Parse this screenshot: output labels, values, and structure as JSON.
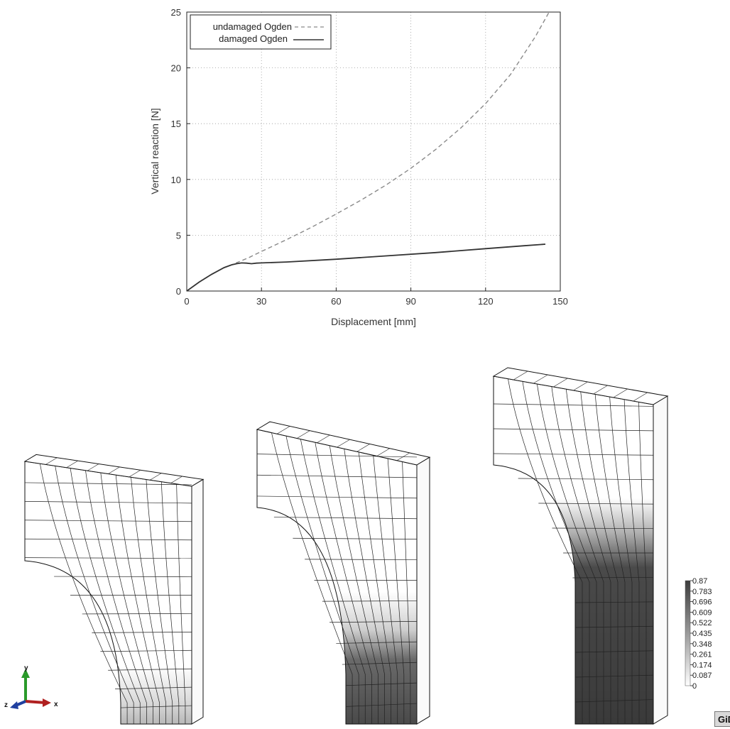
{
  "chart_data": {
    "type": "line",
    "xlabel": "Displacement [mm]",
    "ylabel": "Vertical reaction [N]",
    "xlim": [
      0,
      150
    ],
    "ylim": [
      0,
      25
    ],
    "xticks": [
      "0",
      "30",
      "60",
      "90",
      "120",
      "150"
    ],
    "yticks": [
      "0",
      "5",
      "10",
      "15",
      "20",
      "25"
    ],
    "grid": true,
    "legend_position": "top-left",
    "series": [
      {
        "name": "undamaged Ogden",
        "style": "dashed",
        "color": "#8a8a8a",
        "x": [
          0,
          5,
          10,
          15,
          18,
          25,
          30,
          40,
          50,
          60,
          70,
          80,
          90,
          100,
          110,
          120,
          130,
          140,
          146
        ],
        "y": [
          0,
          0.8,
          1.5,
          2.1,
          2.35,
          3.0,
          3.55,
          4.6,
          5.7,
          6.9,
          8.15,
          9.5,
          11.0,
          12.7,
          14.6,
          16.8,
          19.4,
          22.8,
          25.2
        ]
      },
      {
        "name": "damaged Ogden",
        "style": "solid",
        "color": "#333333",
        "x": [
          0,
          5,
          10,
          15,
          18,
          20,
          22,
          24,
          26,
          28,
          30,
          40,
          60,
          80,
          100,
          120,
          135,
          144
        ],
        "y": [
          0,
          0.8,
          1.5,
          2.1,
          2.35,
          2.45,
          2.52,
          2.5,
          2.45,
          2.5,
          2.52,
          2.6,
          2.85,
          3.15,
          3.45,
          3.8,
          4.05,
          4.2
        ]
      }
    ]
  },
  "colorbar": {
    "ticks": [
      "0.87",
      "0.783",
      "0.696",
      "0.609",
      "0.522",
      "0.435",
      "0.348",
      "0.261",
      "0.174",
      "0.087",
      "0"
    ]
  },
  "axes_triad": {
    "x_label": "x",
    "y_label": "y",
    "z_label": "z"
  },
  "logo_text": "GiD"
}
